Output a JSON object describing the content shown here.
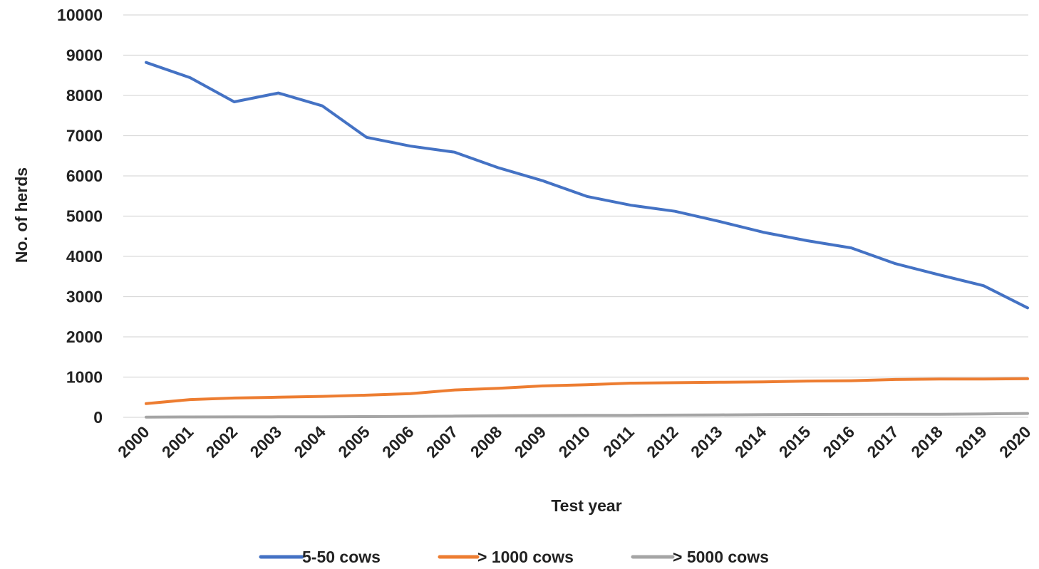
{
  "chart_data": {
    "type": "line",
    "title": "",
    "xlabel": "Test year",
    "ylabel": "No. of herds",
    "ylim": [
      0,
      10000
    ],
    "yticks": [
      "0",
      "1000",
      "2000",
      "3000",
      "4000",
      "5000",
      "6000",
      "7000",
      "8000",
      "9000",
      "10000"
    ],
    "categories": [
      "2000",
      "2001",
      "2002",
      "2003",
      "2004",
      "2005",
      "2006",
      "2007",
      "2008",
      "2009",
      "2010",
      "2011",
      "2012",
      "2013",
      "2014",
      "2015",
      "2016",
      "2017",
      "2018",
      "2019",
      "2020"
    ],
    "grid": "horizontal",
    "legend_position": "bottom",
    "series": [
      {
        "name": "5-50 cows",
        "color": "#4472C4",
        "values": [
          8820,
          8440,
          7840,
          8060,
          7740,
          6960,
          6740,
          6590,
          6200,
          5880,
          5490,
          5270,
          5120,
          4870,
          4600,
          4390,
          4210,
          3820,
          3540,
          3270,
          2720
        ]
      },
      {
        "name": "> 1000 cows",
        "color": "#ED7D31",
        "values": [
          340,
          440,
          480,
          500,
          520,
          550,
          590,
          680,
          720,
          780,
          810,
          850,
          860,
          870,
          880,
          900,
          910,
          940,
          950,
          950,
          960
        ]
      },
      {
        "name": "> 5000 cows",
        "color": "#A5A5A5",
        "values": [
          5,
          8,
          10,
          12,
          14,
          18,
          22,
          30,
          40,
          45,
          48,
          50,
          55,
          60,
          65,
          70,
          72,
          74,
          76,
          85,
          95
        ]
      }
    ]
  }
}
